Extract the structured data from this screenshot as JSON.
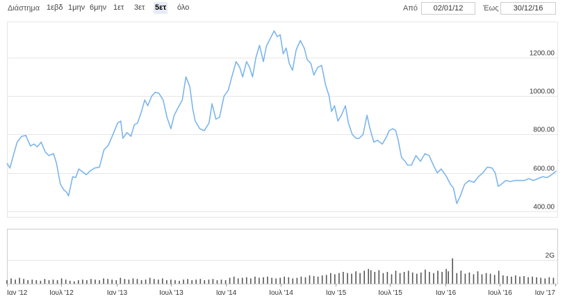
{
  "toolbar": {
    "range_label": "Διάστημα",
    "ranges": [
      "1εβδ",
      "1μην",
      "6μην",
      "1ετ",
      "3ετ",
      "5ετ",
      "όλο"
    ],
    "active_range": "5ετ",
    "from_label": "Από",
    "from_value": "02/01/12",
    "to_label": "Έως",
    "to_value": "30/12/16"
  },
  "colors": {
    "line": "#7cb5ec",
    "volume_bar": "#555555",
    "grid": "#e6e6e6",
    "pane_border": "#cccccc"
  },
  "chart_data": {
    "type": "line",
    "title": "",
    "xlabel": "",
    "ylabel": "",
    "y_ticks": [
      "400.00",
      "600.00",
      "800.00",
      "1000.00",
      "1200.00"
    ],
    "ylim": [
      370,
      1385
    ],
    "x_tick_labels": [
      {
        "date": "2012-01-01",
        "label": "Ιαν '12"
      },
      {
        "date": "2012-07-01",
        "label": "Ιουλ '12"
      },
      {
        "date": "2013-01-01",
        "label": "Ιαν '13"
      },
      {
        "date": "2013-07-01",
        "label": "Ιουλ '13"
      },
      {
        "date": "2014-01-01",
        "label": "Ιαν '14"
      },
      {
        "date": "2014-07-01",
        "label": "Ιουλ '14"
      },
      {
        "date": "2015-01-01",
        "label": "Ιαν '15"
      },
      {
        "date": "2015-07-01",
        "label": "Ιουλ '15"
      },
      {
        "date": "2016-01-01",
        "label": "Ιαν '16"
      },
      {
        "date": "2016-07-01",
        "label": "Ιουλ '16"
      },
      {
        "date": "2017-01-01",
        "label": "Ιαν '17"
      }
    ],
    "xlim": [
      "2012-01-02",
      "2017-01-08"
    ],
    "series": [
      {
        "points": [
          [
            "2012-01-02",
            650
          ],
          [
            "2012-01-12",
            625
          ],
          [
            "2012-01-25",
            700
          ],
          [
            "2012-02-05",
            760
          ],
          [
            "2012-02-20",
            790
          ],
          [
            "2012-03-05",
            795
          ],
          [
            "2012-03-20",
            740
          ],
          [
            "2012-04-02",
            750
          ],
          [
            "2012-04-12",
            735
          ],
          [
            "2012-04-25",
            760
          ],
          [
            "2012-05-08",
            710
          ],
          [
            "2012-05-20",
            690
          ],
          [
            "2012-06-05",
            700
          ],
          [
            "2012-06-15",
            650
          ],
          [
            "2012-06-28",
            540
          ],
          [
            "2012-07-10",
            510
          ],
          [
            "2012-07-18",
            500
          ],
          [
            "2012-07-25",
            480
          ],
          [
            "2012-08-08",
            580
          ],
          [
            "2012-08-18",
            575
          ],
          [
            "2012-08-28",
            620
          ],
          [
            "2012-09-10",
            605
          ],
          [
            "2012-09-22",
            590
          ],
          [
            "2012-10-05",
            610
          ],
          [
            "2012-10-20",
            625
          ],
          [
            "2012-11-05",
            630
          ],
          [
            "2012-11-20",
            720
          ],
          [
            "2012-12-05",
            745
          ],
          [
            "2012-12-20",
            800
          ],
          [
            "2013-01-05",
            860
          ],
          [
            "2013-01-15",
            870
          ],
          [
            "2013-01-22",
            780
          ],
          [
            "2013-02-05",
            810
          ],
          [
            "2013-02-18",
            790
          ],
          [
            "2013-03-01",
            850
          ],
          [
            "2013-03-12",
            860
          ],
          [
            "2013-03-25",
            920
          ],
          [
            "2013-04-05",
            980
          ],
          [
            "2013-04-15",
            950
          ],
          [
            "2013-04-28",
            1000
          ],
          [
            "2013-05-10",
            1020
          ],
          [
            "2013-05-22",
            1015
          ],
          [
            "2013-06-05",
            980
          ],
          [
            "2013-06-18",
            890
          ],
          [
            "2013-07-01",
            830
          ],
          [
            "2013-07-12",
            900
          ],
          [
            "2013-07-25",
            940
          ],
          [
            "2013-08-08",
            980
          ],
          [
            "2013-08-20",
            1100
          ],
          [
            "2013-09-02",
            1050
          ],
          [
            "2013-09-12",
            930
          ],
          [
            "2013-09-20",
            870
          ],
          [
            "2013-10-05",
            830
          ],
          [
            "2013-10-20",
            820
          ],
          [
            "2013-11-05",
            860
          ],
          [
            "2013-11-15",
            960
          ],
          [
            "2013-11-28",
            880
          ],
          [
            "2013-12-10",
            890
          ],
          [
            "2013-12-25",
            1000
          ],
          [
            "2014-01-08",
            1030
          ],
          [
            "2014-01-20",
            1100
          ],
          [
            "2014-02-03",
            1180
          ],
          [
            "2014-02-15",
            1150
          ],
          [
            "2014-02-25",
            1100
          ],
          [
            "2014-03-10",
            1180
          ],
          [
            "2014-03-20",
            1150
          ],
          [
            "2014-03-30",
            1100
          ],
          [
            "2014-04-10",
            1200
          ],
          [
            "2014-04-22",
            1265
          ],
          [
            "2014-05-05",
            1180
          ],
          [
            "2014-05-15",
            1260
          ],
          [
            "2014-05-28",
            1300
          ],
          [
            "2014-06-10",
            1340
          ],
          [
            "2014-06-20",
            1310
          ],
          [
            "2014-06-30",
            1320
          ],
          [
            "2014-07-10",
            1220
          ],
          [
            "2014-07-20",
            1250
          ],
          [
            "2014-07-30",
            1170
          ],
          [
            "2014-08-10",
            1135
          ],
          [
            "2014-08-22",
            1240
          ],
          [
            "2014-09-05",
            1290
          ],
          [
            "2014-09-18",
            1250
          ],
          [
            "2014-09-28",
            1190
          ],
          [
            "2014-10-10",
            1170
          ],
          [
            "2014-10-20",
            1110
          ],
          [
            "2014-11-02",
            1150
          ],
          [
            "2014-11-15",
            1160
          ],
          [
            "2014-11-28",
            1060
          ],
          [
            "2014-12-10",
            1000
          ],
          [
            "2014-12-18",
            920
          ],
          [
            "2014-12-28",
            950
          ],
          [
            "2015-01-08",
            870
          ],
          [
            "2015-01-20",
            900
          ],
          [
            "2015-02-02",
            950
          ],
          [
            "2015-02-12",
            860
          ],
          [
            "2015-02-25",
            800
          ],
          [
            "2015-03-10",
            780
          ],
          [
            "2015-03-20",
            780
          ],
          [
            "2015-04-02",
            800
          ],
          [
            "2015-04-15",
            900
          ],
          [
            "2015-04-25",
            830
          ],
          [
            "2015-05-08",
            760
          ],
          [
            "2015-05-20",
            770
          ],
          [
            "2015-06-05",
            750
          ],
          [
            "2015-06-20",
            790
          ],
          [
            "2015-06-28",
            820
          ],
          [
            "2015-07-10",
            830
          ],
          [
            "2015-07-20",
            820
          ],
          [
            "2015-07-28",
            770
          ],
          [
            "2015-08-08",
            680
          ],
          [
            "2015-08-20",
            660
          ],
          [
            "2015-08-28",
            640
          ],
          [
            "2015-09-10",
            640
          ],
          [
            "2015-09-25",
            690
          ],
          [
            "2015-10-10",
            660
          ],
          [
            "2015-10-25",
            700
          ],
          [
            "2015-11-08",
            690
          ],
          [
            "2015-11-22",
            640
          ],
          [
            "2015-12-05",
            600
          ],
          [
            "2015-12-18",
            620
          ],
          [
            "2016-01-05",
            580
          ],
          [
            "2016-01-18",
            540
          ],
          [
            "2016-01-28",
            520
          ],
          [
            "2016-02-08",
            440
          ],
          [
            "2016-02-20",
            480
          ],
          [
            "2016-03-05",
            540
          ],
          [
            "2016-03-20",
            560
          ],
          [
            "2016-04-05",
            550
          ],
          [
            "2016-04-20",
            580
          ],
          [
            "2016-05-05",
            600
          ],
          [
            "2016-05-20",
            630
          ],
          [
            "2016-06-05",
            625
          ],
          [
            "2016-06-15",
            600
          ],
          [
            "2016-06-25",
            530
          ],
          [
            "2016-07-05",
            540
          ],
          [
            "2016-07-20",
            560
          ],
          [
            "2016-08-05",
            555
          ],
          [
            "2016-08-20",
            560
          ],
          [
            "2016-09-05",
            560
          ],
          [
            "2016-09-20",
            560
          ],
          [
            "2016-10-05",
            570
          ],
          [
            "2016-10-20",
            560
          ],
          [
            "2016-11-05",
            570
          ],
          [
            "2016-11-20",
            580
          ],
          [
            "2016-12-05",
            575
          ],
          [
            "2016-12-20",
            590
          ],
          [
            "2017-01-05",
            610
          ]
        ]
      }
    ],
    "volume": {
      "y_tick_label": "2G",
      "y_tick_value": 2,
      "ylim": [
        0,
        4.6
      ],
      "unit": "G",
      "bars": [
        [
          "2012-01-02",
          0.3
        ],
        [
          "2012-01-16",
          0.45
        ],
        [
          "2012-01-30",
          0.35
        ],
        [
          "2012-02-13",
          0.5
        ],
        [
          "2012-02-27",
          0.4
        ],
        [
          "2012-03-12",
          0.3
        ],
        [
          "2012-03-26",
          0.35
        ],
        [
          "2012-04-09",
          0.3
        ],
        [
          "2012-04-23",
          0.25
        ],
        [
          "2012-05-07",
          0.4
        ],
        [
          "2012-05-21",
          0.3
        ],
        [
          "2012-06-04",
          0.35
        ],
        [
          "2012-06-18",
          0.3
        ],
        [
          "2012-07-02",
          0.45
        ],
        [
          "2012-07-16",
          0.35
        ],
        [
          "2012-07-30",
          0.25
        ],
        [
          "2012-08-13",
          0.2
        ],
        [
          "2012-08-27",
          0.3
        ],
        [
          "2012-09-10",
          0.35
        ],
        [
          "2012-09-24",
          0.3
        ],
        [
          "2012-10-08",
          0.4
        ],
        [
          "2012-10-22",
          0.35
        ],
        [
          "2012-11-05",
          0.3
        ],
        [
          "2012-11-19",
          0.45
        ],
        [
          "2012-12-03",
          0.4
        ],
        [
          "2012-12-17",
          0.35
        ],
        [
          "2012-12-31",
          0.3
        ],
        [
          "2013-01-14",
          0.5
        ],
        [
          "2013-01-28",
          0.4
        ],
        [
          "2013-02-11",
          0.35
        ],
        [
          "2013-02-25",
          0.45
        ],
        [
          "2013-03-11",
          0.4
        ],
        [
          "2013-03-25",
          0.3
        ],
        [
          "2013-04-08",
          0.35
        ],
        [
          "2013-04-22",
          0.5
        ],
        [
          "2013-05-06",
          0.4
        ],
        [
          "2013-05-20",
          0.35
        ],
        [
          "2013-06-03",
          0.45
        ],
        [
          "2013-06-17",
          0.3
        ],
        [
          "2013-07-01",
          0.35
        ],
        [
          "2013-07-15",
          0.3
        ],
        [
          "2013-07-29",
          0.25
        ],
        [
          "2013-08-12",
          0.35
        ],
        [
          "2013-08-26",
          0.4
        ],
        [
          "2013-09-09",
          0.3
        ],
        [
          "2013-09-23",
          0.35
        ],
        [
          "2013-10-07",
          0.4
        ],
        [
          "2013-10-21",
          0.3
        ],
        [
          "2013-11-04",
          0.35
        ],
        [
          "2013-11-18",
          0.4
        ],
        [
          "2013-12-02",
          0.3
        ],
        [
          "2013-12-16",
          0.35
        ],
        [
          "2013-12-30",
          0.3
        ],
        [
          "2014-01-13",
          0.5
        ],
        [
          "2014-01-27",
          0.6
        ],
        [
          "2014-02-10",
          0.45
        ],
        [
          "2014-02-24",
          0.5
        ],
        [
          "2014-03-10",
          0.55
        ],
        [
          "2014-03-24",
          0.45
        ],
        [
          "2014-04-07",
          0.6
        ],
        [
          "2014-04-21",
          0.5
        ],
        [
          "2014-05-05",
          0.55
        ],
        [
          "2014-05-19",
          0.6
        ],
        [
          "2014-06-02",
          0.5
        ],
        [
          "2014-06-16",
          0.45
        ],
        [
          "2014-06-30",
          0.5
        ],
        [
          "2014-07-14",
          0.6
        ],
        [
          "2014-07-28",
          0.55
        ],
        [
          "2014-08-11",
          0.45
        ],
        [
          "2014-08-25",
          0.5
        ],
        [
          "2014-09-08",
          0.6
        ],
        [
          "2014-09-22",
          0.55
        ],
        [
          "2014-10-06",
          0.7
        ],
        [
          "2014-10-20",
          0.65
        ],
        [
          "2014-11-03",
          0.6
        ],
        [
          "2014-11-17",
          0.7
        ],
        [
          "2014-12-01",
          0.75
        ],
        [
          "2014-12-15",
          0.9
        ],
        [
          "2014-12-29",
          0.8
        ],
        [
          "2015-01-12",
          0.9
        ],
        [
          "2015-01-26",
          1.0
        ],
        [
          "2015-02-09",
          0.9
        ],
        [
          "2015-02-23",
          0.85
        ],
        [
          "2015-03-09",
          1.05
        ],
        [
          "2015-03-23",
          0.9
        ],
        [
          "2015-04-06",
          1.1
        ],
        [
          "2015-04-20",
          1.25
        ],
        [
          "2015-04-28",
          1.15
        ],
        [
          "2015-05-11",
          1.0
        ],
        [
          "2015-05-25",
          1.15
        ],
        [
          "2015-06-08",
          0.9
        ],
        [
          "2015-06-22",
          1.0
        ],
        [
          "2015-07-06",
          0.8
        ],
        [
          "2015-07-20",
          1.1
        ],
        [
          "2015-08-03",
          0.9
        ],
        [
          "2015-08-17",
          1.0
        ],
        [
          "2015-08-31",
          1.1
        ],
        [
          "2015-09-14",
          0.95
        ],
        [
          "2015-09-28",
          0.85
        ],
        [
          "2015-10-12",
          0.95
        ],
        [
          "2015-10-26",
          1.2
        ],
        [
          "2015-11-09",
          1.0
        ],
        [
          "2015-11-23",
          0.9
        ],
        [
          "2015-12-07",
          1.1
        ],
        [
          "2015-12-21",
          1.0
        ],
        [
          "2016-01-04",
          1.25
        ],
        [
          "2016-01-11",
          1.05
        ],
        [
          "2016-01-25",
          2.15
        ],
        [
          "2016-02-08",
          0.9
        ],
        [
          "2016-02-22",
          1.1
        ],
        [
          "2016-03-07",
          0.85
        ],
        [
          "2016-03-21",
          0.95
        ],
        [
          "2016-04-04",
          0.8
        ],
        [
          "2016-04-18",
          1.05
        ],
        [
          "2016-05-02",
          0.8
        ],
        [
          "2016-05-16",
          0.9
        ],
        [
          "2016-05-30",
          0.85
        ],
        [
          "2016-06-13",
          0.75
        ],
        [
          "2016-06-27",
          1.1
        ],
        [
          "2016-07-11",
          0.7
        ],
        [
          "2016-07-25",
          0.65
        ],
        [
          "2016-08-08",
          0.6
        ],
        [
          "2016-08-22",
          0.7
        ],
        [
          "2016-09-05",
          0.6
        ],
        [
          "2016-09-19",
          0.65
        ],
        [
          "2016-10-03",
          0.55
        ],
        [
          "2016-10-17",
          0.6
        ],
        [
          "2016-10-31",
          0.55
        ],
        [
          "2016-11-14",
          0.5
        ],
        [
          "2016-11-28",
          0.45
        ],
        [
          "2016-12-12",
          0.55
        ],
        [
          "2016-12-26",
          0.5
        ]
      ]
    }
  }
}
